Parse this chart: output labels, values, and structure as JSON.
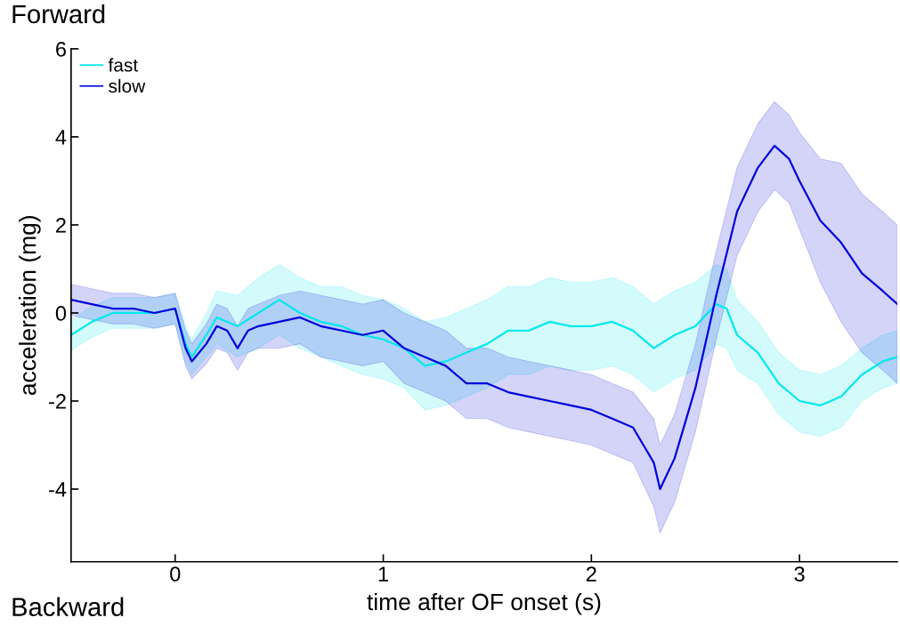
{
  "chart_data": {
    "type": "line",
    "xlabel": "time after OF onset (s)",
    "ylabel": "acceleration (mg)",
    "annotations": [
      "Forward",
      "Backward"
    ],
    "xlim": [
      -0.5,
      3.47
    ],
    "xticks": [
      0,
      1,
      2,
      3
    ],
    "ylim": [
      -5.65,
      6
    ],
    "yticks": [
      -4,
      -2,
      0,
      2,
      4,
      6
    ],
    "grid": false,
    "legend": "top left",
    "line_style": "solid",
    "marker": "none",
    "series": [
      {
        "name": "fast",
        "color": "#00e8ee",
        "x": [
          -0.5,
          -0.4,
          -0.3,
          -0.2,
          -0.1,
          0,
          0.05,
          0.08,
          0.15,
          0.2,
          0.3,
          0.4,
          0.5,
          0.6,
          0.7,
          0.8,
          0.9,
          1.0,
          1.1,
          1.2,
          1.3,
          1.4,
          1.5,
          1.6,
          1.7,
          1.8,
          1.9,
          2.0,
          2.1,
          2.2,
          2.3,
          2.4,
          2.5,
          2.6,
          2.65,
          2.7,
          2.8,
          2.9,
          3.0,
          3.1,
          3.2,
          3.3,
          3.4,
          3.47
        ],
        "values": [
          -0.5,
          -0.2,
          0.0,
          0.0,
          0.0,
          0.1,
          -0.7,
          -1.0,
          -0.5,
          -0.1,
          -0.3,
          0.0,
          0.3,
          0.0,
          -0.2,
          -0.3,
          -0.5,
          -0.6,
          -0.8,
          -1.2,
          -1.1,
          -0.9,
          -0.7,
          -0.4,
          -0.4,
          -0.2,
          -0.3,
          -0.3,
          -0.2,
          -0.4,
          -0.8,
          -0.5,
          -0.3,
          0.2,
          0.1,
          -0.5,
          -0.9,
          -1.6,
          -2.0,
          -2.1,
          -1.9,
          -1.4,
          -1.1,
          -1.0
        ],
        "lower": [
          -0.85,
          -0.55,
          -0.35,
          -0.35,
          -0.35,
          -0.25,
          -1.1,
          -1.4,
          -1.0,
          -0.7,
          -1.0,
          -0.8,
          -0.5,
          -0.8,
          -1.0,
          -1.2,
          -1.4,
          -1.5,
          -1.7,
          -2.2,
          -2.1,
          -1.9,
          -1.7,
          -1.4,
          -1.4,
          -1.2,
          -1.3,
          -1.3,
          -1.2,
          -1.4,
          -1.8,
          -1.5,
          -1.3,
          -0.7,
          -0.8,
          -1.3,
          -1.6,
          -2.3,
          -2.7,
          -2.8,
          -2.6,
          -2.0,
          -1.7,
          -1.6
        ],
        "upper": [
          -0.15,
          0.15,
          0.35,
          0.35,
          0.35,
          0.45,
          -0.3,
          -0.6,
          0.0,
          0.5,
          0.4,
          0.8,
          1.1,
          0.8,
          0.6,
          0.6,
          0.4,
          0.3,
          0.1,
          -0.2,
          -0.1,
          0.1,
          0.3,
          0.6,
          0.6,
          0.8,
          0.7,
          0.7,
          0.8,
          0.6,
          0.2,
          0.5,
          0.7,
          1.1,
          1.0,
          0.3,
          -0.2,
          -0.9,
          -1.3,
          -1.4,
          -1.2,
          -0.8,
          -0.5,
          -0.4
        ]
      },
      {
        "name": "slow",
        "color": "#0000dd",
        "x": [
          -0.5,
          -0.4,
          -0.3,
          -0.2,
          -0.1,
          0,
          0.05,
          0.08,
          0.15,
          0.2,
          0.25,
          0.3,
          0.35,
          0.4,
          0.5,
          0.6,
          0.7,
          0.8,
          0.9,
          1.0,
          1.1,
          1.2,
          1.3,
          1.4,
          1.5,
          1.6,
          1.7,
          1.8,
          1.9,
          2.0,
          2.1,
          2.2,
          2.3,
          2.33,
          2.4,
          2.5,
          2.6,
          2.7,
          2.8,
          2.88,
          2.95,
          3.0,
          3.1,
          3.2,
          3.3,
          3.4,
          3.47
        ],
        "values": [
          0.3,
          0.2,
          0.1,
          0.1,
          0.0,
          0.1,
          -0.8,
          -1.1,
          -0.7,
          -0.3,
          -0.4,
          -0.8,
          -0.4,
          -0.3,
          -0.2,
          -0.1,
          -0.3,
          -0.4,
          -0.5,
          -0.4,
          -0.8,
          -1.0,
          -1.2,
          -1.6,
          -1.6,
          -1.8,
          -1.9,
          -2.0,
          -2.1,
          -2.2,
          -2.4,
          -2.6,
          -3.4,
          -4.0,
          -3.3,
          -1.7,
          0.4,
          2.3,
          3.3,
          3.8,
          3.5,
          3.0,
          2.1,
          1.6,
          0.9,
          0.5,
          0.2
        ],
        "lower": [
          -0.05,
          -0.15,
          -0.25,
          -0.25,
          -0.35,
          -0.25,
          -1.2,
          -1.5,
          -1.15,
          -0.8,
          -0.9,
          -1.3,
          -0.9,
          -0.8,
          -0.8,
          -0.7,
          -1.0,
          -1.1,
          -1.2,
          -1.1,
          -1.6,
          -1.8,
          -2.0,
          -2.4,
          -2.4,
          -2.6,
          -2.7,
          -2.8,
          -2.9,
          -3.0,
          -3.2,
          -3.4,
          -4.4,
          -5.0,
          -4.3,
          -2.7,
          -0.6,
          1.3,
          2.3,
          2.8,
          2.5,
          1.9,
          0.7,
          -0.2,
          -0.9,
          -1.3,
          -1.6
        ],
        "upper": [
          0.65,
          0.55,
          0.45,
          0.45,
          0.35,
          0.45,
          -0.4,
          -0.7,
          -0.25,
          0.2,
          0.1,
          -0.3,
          0.1,
          0.2,
          0.4,
          0.5,
          0.4,
          0.3,
          0.2,
          0.3,
          0.0,
          -0.2,
          -0.4,
          -0.8,
          -0.8,
          -1.0,
          -1.1,
          -1.2,
          -1.3,
          -1.4,
          -1.6,
          -1.8,
          -2.4,
          -3.0,
          -2.3,
          -0.7,
          1.4,
          3.3,
          4.3,
          4.8,
          4.5,
          4.1,
          3.5,
          3.4,
          2.7,
          2.3,
          2.0
        ]
      }
    ]
  }
}
